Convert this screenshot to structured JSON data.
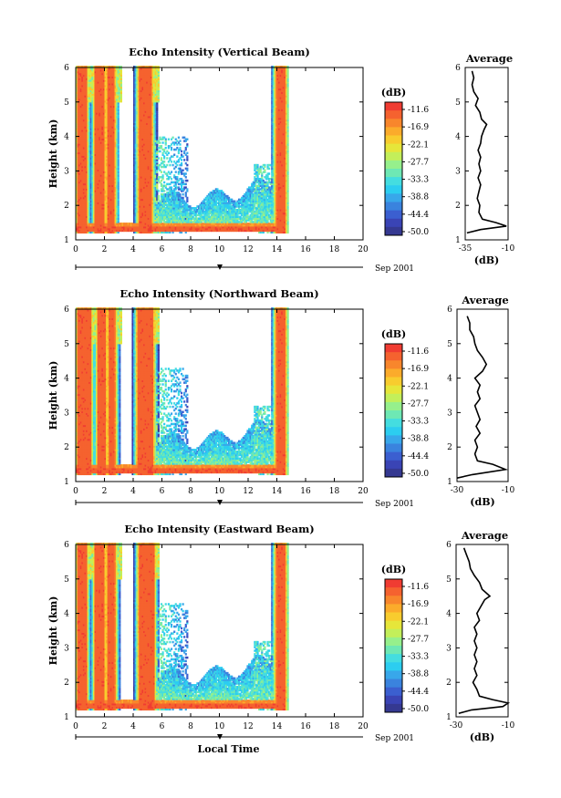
{
  "figure": {
    "date_label": "Sep 2001",
    "x_axis_title": "Local Time",
    "colorbar_unit": "(dB)",
    "avg_title": "Average",
    "avg_xlabel": "(dB)"
  },
  "chart_data": [
    {
      "type": "heatmap",
      "title": "Echo Intensity (Vertical Beam)",
      "xlabel": "",
      "ylabel": "Height (km)",
      "xlim": [
        0,
        20
      ],
      "ylim": [
        1,
        6
      ],
      "x_ticks": [
        0,
        2,
        4,
        6,
        8,
        10,
        12,
        14,
        16,
        18,
        20
      ],
      "y_ticks": [
        1,
        2,
        3,
        4,
        5,
        6
      ],
      "colorbar": {
        "unit": "(dB)",
        "labels": [
          "-11.6",
          "-16.9",
          "-22.1",
          "-27.7",
          "-33.3",
          "-38.8",
          "-44.4",
          "-50.0"
        ]
      },
      "high_echo_bands_hours": [
        [
          0.0,
          0.8
        ],
        [
          1.4,
          2.0
        ],
        [
          2.2,
          2.7
        ],
        [
          4.4,
          5.4
        ],
        [
          13.9,
          14.6
        ]
      ],
      "surface_layer_km": [
        1.3,
        1.5
      ],
      "average_profile": {
        "title": "Average",
        "xlabel": "(dB)",
        "xlim": [
          -35,
          -10
        ],
        "x_ticks": [
          -35,
          -10
        ],
        "ylim": [
          1,
          6
        ],
        "y_ticks": [
          1,
          2,
          3,
          4,
          5,
          6
        ],
        "height_km": [
          1.2,
          1.3,
          1.4,
          1.5,
          1.6,
          1.8,
          2.0,
          2.2,
          2.4,
          2.6,
          2.8,
          3.0,
          3.2,
          3.4,
          3.6,
          3.8,
          4.0,
          4.2,
          4.35,
          4.5,
          4.7,
          4.9,
          5.1,
          5.3,
          5.5,
          5.7,
          5.9
        ],
        "echo_db": [
          -34,
          -26,
          -11,
          -17,
          -25,
          -27,
          -26.5,
          -28,
          -27,
          -26,
          -27.5,
          -26,
          -27,
          -26,
          -27.5,
          -26,
          -25.5,
          -24,
          -22.5,
          -25.5,
          -26.5,
          -29,
          -27.5,
          -30,
          -31,
          -30,
          -31
        ]
      }
    },
    {
      "type": "heatmap",
      "title": "Echo Intensity (Northward Beam)",
      "xlabel": "",
      "ylabel": "Height (km)",
      "xlim": [
        0,
        20
      ],
      "ylim": [
        1,
        6
      ],
      "x_ticks": [
        0,
        2,
        4,
        6,
        8,
        10,
        12,
        14,
        16,
        18,
        20
      ],
      "y_ticks": [
        1,
        2,
        3,
        4,
        5,
        6
      ],
      "colorbar": {
        "unit": "(dB)",
        "labels": [
          "-11.6",
          "-16.9",
          "-22.1",
          "-27.7",
          "-33.3",
          "-38.8",
          "-44.4",
          "-50.0"
        ]
      },
      "high_echo_bands_hours": [
        [
          0.0,
          1.1
        ],
        [
          1.6,
          2.1
        ],
        [
          2.3,
          2.8
        ],
        [
          4.3,
          5.5
        ],
        [
          13.9,
          14.6
        ]
      ],
      "surface_layer_km": [
        1.3,
        1.5
      ],
      "average_profile": {
        "title": "Average",
        "xlabel": "(dB)",
        "xlim": [
          -30,
          -10
        ],
        "x_ticks": [
          -30,
          -10
        ],
        "ylim": [
          1,
          6
        ],
        "y_ticks": [
          1,
          2,
          3,
          4,
          5,
          6
        ],
        "height_km": [
          1.1,
          1.2,
          1.35,
          1.5,
          1.6,
          1.8,
          2.0,
          2.2,
          2.4,
          2.6,
          2.8,
          3.0,
          3.2,
          3.4,
          3.6,
          3.8,
          4.0,
          4.2,
          4.4,
          4.6,
          4.8,
          5.0,
          5.2,
          5.4,
          5.6,
          5.8
        ],
        "echo_db": [
          -30,
          -24,
          -11,
          -16,
          -22,
          -23,
          -22,
          -23,
          -21,
          -22.5,
          -21,
          -22,
          -23,
          -21,
          -22,
          -21,
          -23,
          -20,
          -18.5,
          -20,
          -22,
          -23,
          -23.5,
          -25,
          -25,
          -26
        ]
      }
    },
    {
      "type": "heatmap",
      "title": "Echo Intensity (Eastward Beam)",
      "xlabel": "Local Time",
      "ylabel": "Height (km)",
      "xlim": [
        0,
        20
      ],
      "ylim": [
        1,
        6
      ],
      "x_ticks": [
        0,
        2,
        4,
        6,
        8,
        10,
        12,
        14,
        16,
        18,
        20
      ],
      "y_ticks": [
        1,
        2,
        3,
        4,
        5,
        6
      ],
      "colorbar": {
        "unit": "(dB)",
        "labels": [
          "-11.6",
          "-16.9",
          "-22.1",
          "-27.7",
          "-33.3",
          "-38.8",
          "-44.4",
          "-50.0"
        ]
      },
      "high_echo_bands_hours": [
        [
          0.0,
          0.8
        ],
        [
          1.4,
          2.0
        ],
        [
          2.2,
          2.8
        ],
        [
          4.4,
          5.5
        ],
        [
          13.9,
          14.6
        ]
      ],
      "surface_layer_km": [
        1.3,
        1.5
      ],
      "average_profile": {
        "title": "Average",
        "xlabel": "(dB)",
        "xlim": [
          -30,
          -10
        ],
        "x_ticks": [
          -30,
          -10
        ],
        "ylim": [
          1,
          6
        ],
        "y_ticks": [
          1,
          2,
          3,
          4,
          5,
          6
        ],
        "height_km": [
          1.1,
          1.2,
          1.3,
          1.4,
          1.5,
          1.6,
          1.8,
          2.0,
          2.2,
          2.4,
          2.6,
          2.8,
          3.0,
          3.2,
          3.4,
          3.6,
          3.8,
          4.0,
          4.2,
          4.4,
          4.5,
          4.7,
          4.9,
          5.1,
          5.3,
          5.5,
          5.7,
          5.9
        ],
        "echo_db": [
          -29,
          -24,
          -12,
          -10,
          -16,
          -21,
          -22,
          -23.5,
          -22,
          -23,
          -22,
          -23,
          -22,
          -23,
          -22,
          -23,
          -21,
          -22,
          -20.5,
          -19,
          -17,
          -20,
          -21,
          -23,
          -24.5,
          -25,
          -26,
          -27
        ]
      }
    }
  ]
}
